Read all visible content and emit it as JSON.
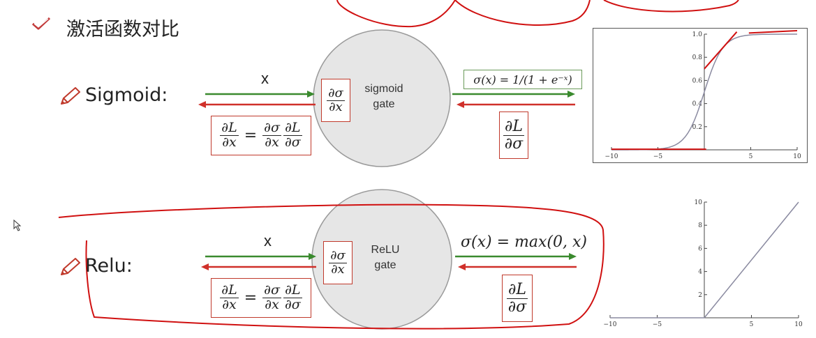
{
  "header": {
    "title": "激活函数对比",
    "check_icon": "checkmark-icon"
  },
  "sigmoid": {
    "label": "Sigmoid:",
    "input_label": "x",
    "gate_line1": "sigmoid",
    "gate_line2": "gate",
    "local_grad": {
      "num": "∂σ",
      "den": "∂x"
    },
    "output_formula": "σ(x) = 1/(1 + e⁻ˣ)",
    "upstream_grad": {
      "num": "∂L",
      "den": "∂σ"
    },
    "chain_rule": {
      "lhs_num": "∂L",
      "lhs_den": "∂x",
      "eq": "=",
      "a_num": "∂σ",
      "a_den": "∂x",
      "b_num": "∂L",
      "b_den": "∂σ"
    }
  },
  "relu": {
    "label": "Relu:",
    "input_label": "x",
    "gate_line1": "ReLU",
    "gate_line2": "gate",
    "local_grad": {
      "num": "∂σ",
      "den": "∂x"
    },
    "output_formula": "σ(x) = max(0, x)",
    "upstream_grad": {
      "num": "∂L",
      "den": "∂σ"
    },
    "chain_rule": {
      "lhs_num": "∂L",
      "lhs_den": "∂x",
      "eq": "=",
      "a_num": "∂σ",
      "a_den": "∂x",
      "b_num": "∂L",
      "b_den": "∂σ"
    }
  },
  "colors": {
    "forward_arrow": "#3a8a2e",
    "backward_arrow": "#d0302a",
    "annotation": "#d01010",
    "gate_fill": "#e6e6e6",
    "curve": "#8a8aa0"
  },
  "chart_data": [
    {
      "type": "line",
      "title": "sigmoid",
      "function": "1/(1+exp(-x))",
      "x": [
        -10,
        -8,
        -6,
        -4,
        -3,
        -2,
        -1,
        0,
        1,
        2,
        3,
        4,
        6,
        8,
        10
      ],
      "y": [
        4.54e-05,
        0.000335,
        0.00247,
        0.018,
        0.047,
        0.119,
        0.269,
        0.5,
        0.731,
        0.881,
        0.953,
        0.982,
        0.9975,
        0.99966,
        0.99995
      ],
      "xlim": [
        -10,
        10
      ],
      "ylim": [
        0,
        1.0
      ],
      "x_ticks": [
        "−10",
        "−5",
        "5",
        "10"
      ],
      "y_ticks": [
        "0.2",
        "0.4",
        "0.6",
        "0.8",
        "1.0"
      ]
    },
    {
      "type": "line",
      "title": "relu",
      "function": "max(0,x)",
      "x": [
        -10,
        0,
        10
      ],
      "y": [
        0,
        0,
        10
      ],
      "xlim": [
        -10,
        10
      ],
      "ylim": [
        0,
        10
      ],
      "x_ticks": [
        "−10",
        "−5",
        "5",
        "10"
      ],
      "y_ticks": [
        "2",
        "4",
        "6",
        "8",
        "10"
      ]
    }
  ]
}
